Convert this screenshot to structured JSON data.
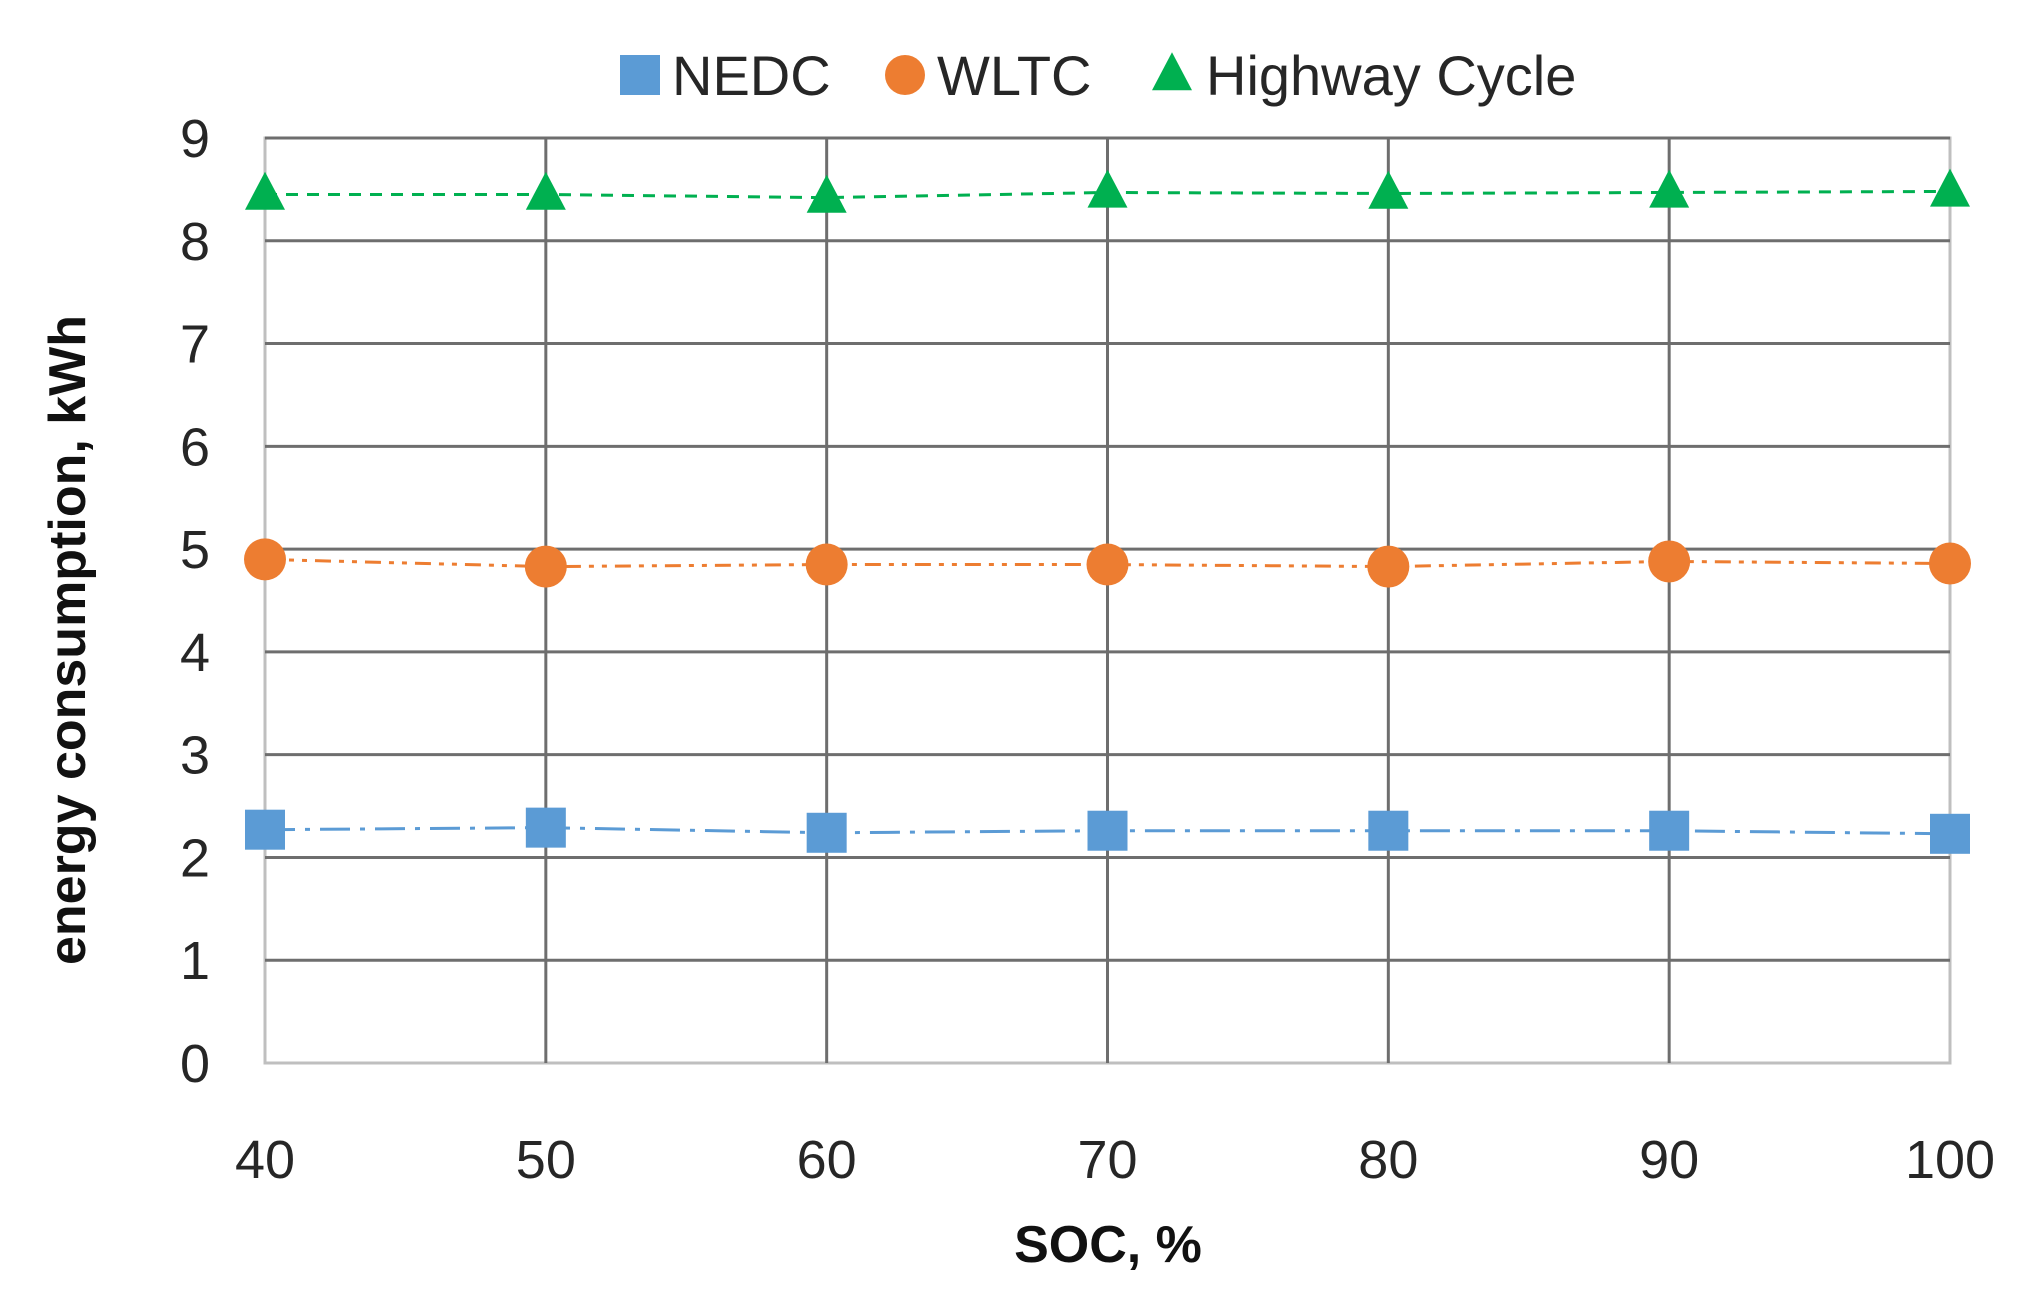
{
  "chart_data": {
    "type": "line",
    "title": "",
    "xlabel": "SOC, %",
    "ylabel": "energy consumption, kWh",
    "x": [
      40,
      50,
      60,
      70,
      80,
      90,
      100
    ],
    "x_tick_labels": [
      "40",
      "50",
      "60",
      "70",
      "80",
      "90",
      "100"
    ],
    "y_tick_labels": [
      "0",
      "1",
      "2",
      "3",
      "4",
      "5",
      "6",
      "7",
      "8",
      "9"
    ],
    "xlim": [
      40,
      100
    ],
    "ylim": [
      0,
      9
    ],
    "grid": true,
    "legend_position": "top-center",
    "series": [
      {
        "name": "NEDC",
        "marker": "square",
        "line_style": "dash-dot",
        "color": "#5B9BD5",
        "values": [
          2.27,
          2.29,
          2.24,
          2.26,
          2.26,
          2.26,
          2.23
        ]
      },
      {
        "name": "WLTC",
        "marker": "circle",
        "line_style": "dash-dot-dot",
        "color": "#ED7D31",
        "values": [
          4.9,
          4.83,
          4.85,
          4.85,
          4.83,
          4.88,
          4.86
        ]
      },
      {
        "name": "Highway Cycle",
        "marker": "triangle",
        "line_style": "dashed",
        "color": "#00B050",
        "values": [
          8.45,
          8.45,
          8.42,
          8.47,
          8.46,
          8.47,
          8.48
        ]
      }
    ]
  }
}
